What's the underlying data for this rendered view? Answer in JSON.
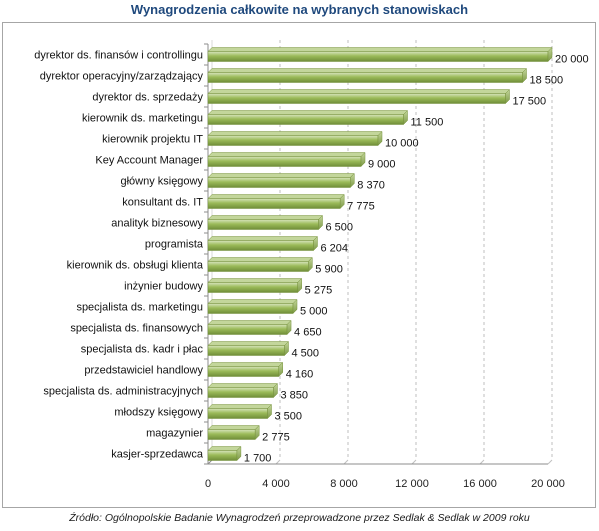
{
  "chart_data": {
    "type": "bar",
    "orientation": "horizontal",
    "title": "Wynagrodzenia całkowite na wybranych stanowiskach",
    "categories": [
      "dyrektor ds. finansów i controllingu",
      "dyrektor operacyjny/zarządzający",
      "dyrektor ds. sprzedaży",
      "kierownik ds. marketingu",
      "kierownik projektu IT",
      "Key Account Manager",
      "główny księgowy",
      "konsultant ds. IT",
      "analityk biznesowy",
      "programista",
      "kierownik ds. obsługi klienta",
      "inżynier budowy",
      "specjalista ds. marketingu",
      "specjalista ds. finansowych",
      "specjalista ds. kadr i płac",
      "przedstawiciel handlowy",
      "specjalista ds. administracyjnych",
      "młodszy księgowy",
      "magazynier",
      "kasjer-sprzedawca"
    ],
    "values": [
      20000,
      18500,
      17500,
      11500,
      10000,
      9000,
      8370,
      7775,
      6500,
      6204,
      5900,
      5275,
      5000,
      4650,
      4500,
      4160,
      3850,
      3500,
      2775,
      1700
    ],
    "value_labels": [
      "20 000",
      "18 500",
      "17 500",
      "11 500",
      "10 000",
      "9 000",
      "8 370",
      "7 775",
      "6 500",
      "6 204",
      "5 900",
      "5 275",
      "5 000",
      "4 650",
      "4 500",
      "4 160",
      "3 850",
      "3 500",
      "2 775",
      "1 700"
    ],
    "xlim": [
      0,
      20000
    ],
    "xticks": [
      0,
      4000,
      8000,
      12000,
      16000,
      20000
    ],
    "xtick_labels": [
      "0",
      "4 000",
      "8 000",
      "12 000",
      "16 000",
      "20 000"
    ],
    "xlabel": "",
    "ylabel": "",
    "grid": "vertical dashed",
    "legend": "none",
    "colors": {
      "bar": "#9bbb59",
      "bar_light": "#c3d69b",
      "bar_dark": "#76923c",
      "title": "#1f497d",
      "grid": "#bfbfbf"
    }
  },
  "source_note": "Źródło: Ogólnopolskie Badanie Wynagrodzeń przeprowadzone przez Sedlak & Sedlak w 2009 roku"
}
